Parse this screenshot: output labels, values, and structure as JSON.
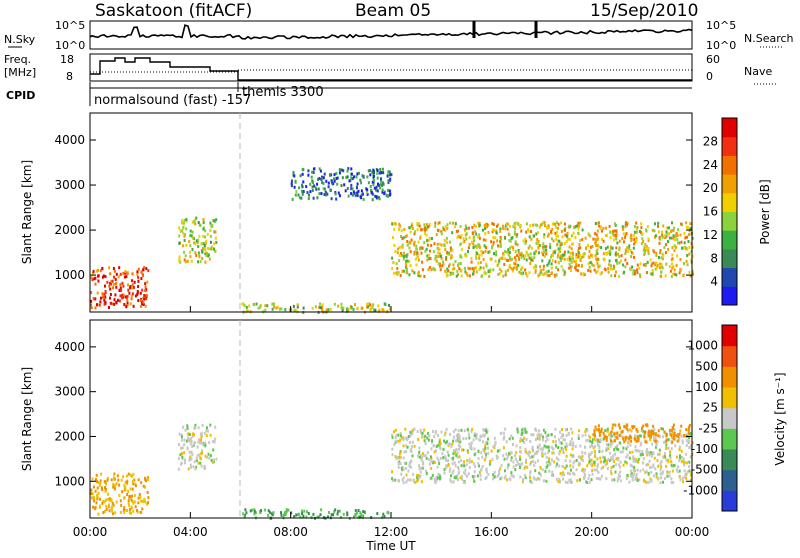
{
  "header": {
    "station": "Saskatoon (fitACF)",
    "beam": "Beam 05",
    "date": "15/Sep/2010"
  },
  "top_panels": {
    "nsky_label": "N.Sky",
    "nsky_ticks": [
      "10^5",
      "10^0"
    ],
    "nsearch_label": "N.Search",
    "nsearch_ticks": [
      "10^5",
      "10^0"
    ],
    "freq_label": "Freq.",
    "freq_unit": "[MHz]",
    "freq_ticks": [
      "18",
      "8"
    ],
    "nave_label": "Nave",
    "nave_ticks": [
      "60",
      "0"
    ],
    "cpid_label": "CPID",
    "cpid_segments": [
      "normalsound (fast) -157",
      "themis 3300"
    ]
  },
  "chart_data": [
    {
      "type": "heatmap",
      "name": "power",
      "ylabel": "Slant Range [km]",
      "xlabel": "",
      "ylim": [
        180,
        4600
      ],
      "yticks": [
        "1000",
        "2000",
        "3000",
        "4000"
      ],
      "xlim": [
        0,
        24
      ],
      "colorbar": {
        "label": "Power [dB]",
        "ticks": [
          "28",
          "24",
          "20",
          "16",
          "12",
          "8",
          "4"
        ],
        "colors": [
          "#1c1cf0",
          "#2048b0",
          "#3a8a55",
          "#3cb040",
          "#8cd23c",
          "#f0d000",
          "#f0a000",
          "#f07000",
          "#f03010",
          "#e00000"
        ]
      },
      "features": [
        {
          "t": [
            0.0,
            2.3
          ],
          "r": [
            300,
            1200
          ],
          "power_db": 28
        },
        {
          "t": [
            3.5,
            5.0
          ],
          "r": [
            1300,
            2300
          ],
          "power_db": 16
        },
        {
          "t": [
            6.0,
            12.0
          ],
          "r": [
            200,
            400
          ],
          "power_db": 16
        },
        {
          "t": [
            8.0,
            12.0
          ],
          "r": [
            2700,
            3400
          ],
          "power_db": 6
        },
        {
          "t": [
            12.0,
            24.0
          ],
          "r": [
            1000,
            2200
          ],
          "power_db": 18
        }
      ]
    },
    {
      "type": "heatmap",
      "name": "velocity",
      "ylabel": "Slant Range [km]",
      "xlabel": "Time UT",
      "ylim": [
        180,
        4600
      ],
      "yticks": [
        "1000",
        "2000",
        "3000",
        "4000"
      ],
      "xlim": [
        0,
        24
      ],
      "xticks": [
        "00:00",
        "04:00",
        "08:00",
        "12:00",
        "16:00",
        "20:00",
        "00:00"
      ],
      "colorbar": {
        "label": "Velocity [m s⁻¹]",
        "ticks": [
          "1000",
          "500",
          "100",
          "25",
          "-25",
          "-100",
          "-500",
          "-1000"
        ],
        "colors": [
          "#2a3cd8",
          "#2d6090",
          "#3a8a55",
          "#5cc850",
          "#c8c8c8",
          "#f0c000",
          "#f09000",
          "#f05010",
          "#e00000"
        ]
      },
      "features": [
        {
          "t": [
            0.0,
            2.3
          ],
          "r": [
            300,
            1200
          ],
          "velocity": -100
        },
        {
          "t": [
            3.5,
            5.0
          ],
          "r": [
            1300,
            2300
          ],
          "velocity": 0
        },
        {
          "t": [
            6.0,
            12.0
          ],
          "r": [
            200,
            400
          ],
          "velocity": 100
        },
        {
          "t": [
            12.0,
            24.0
          ],
          "r": [
            1000,
            2200
          ],
          "velocity": 0
        },
        {
          "t": [
            20.0,
            24.0
          ],
          "r": [
            1900,
            2300
          ],
          "velocity": -300
        }
      ]
    }
  ]
}
